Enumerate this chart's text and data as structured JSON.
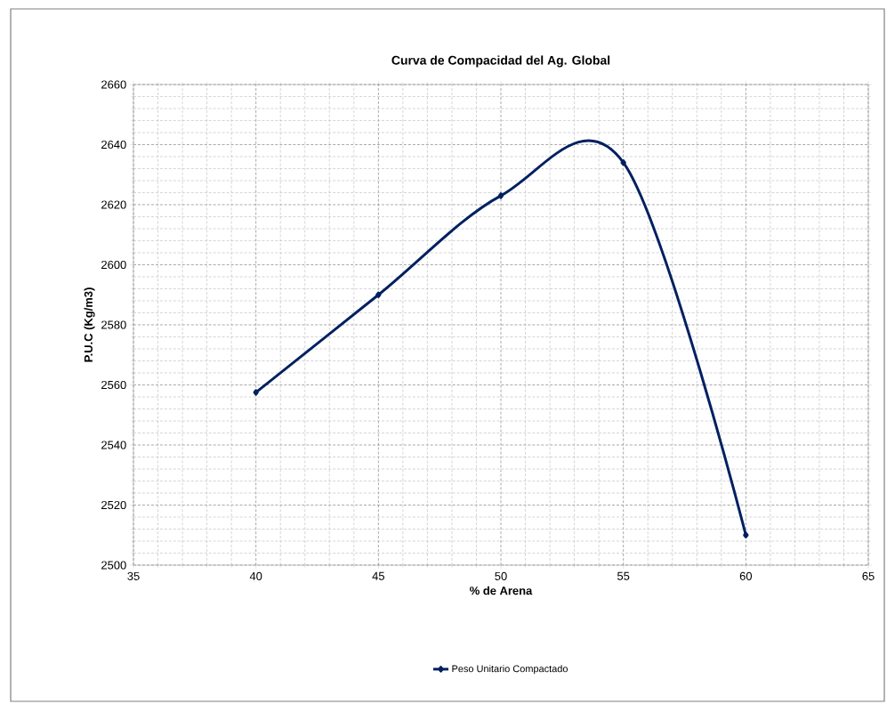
{
  "chart_data": {
    "type": "line",
    "title": "Curva de Compacidad del Ag. Global",
    "xlabel": "% de Arena",
    "ylabel": "P.U.C (Kg/m3)",
    "x": [
      40,
      45,
      50,
      55,
      60
    ],
    "series": [
      {
        "name": "Peso Unitario Compactado",
        "color": "#002060",
        "values": [
          2557.5,
          2590,
          2623,
          2634,
          2510
        ]
      }
    ],
    "xlim": [
      35,
      65
    ],
    "xticks": [
      35,
      40,
      45,
      50,
      55,
      60,
      65
    ],
    "ylim": [
      2500,
      2660
    ],
    "yticks": [
      2500,
      2520,
      2540,
      2560,
      2580,
      2600,
      2620,
      2640,
      2660
    ],
    "grid": true,
    "legend": "bottom",
    "marker": "diamond",
    "line_style": "solid"
  }
}
